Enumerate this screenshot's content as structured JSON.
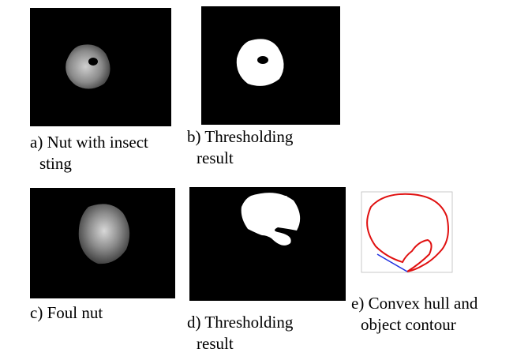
{
  "figure": {
    "panels": [
      {
        "caption": [
          "a) Nut with insect",
          "sting"
        ]
      },
      {
        "caption": [
          "b) Thresholding",
          "result"
        ]
      },
      {
        "caption": [
          "c) Foul nut"
        ]
      },
      {
        "caption": [
          "d) Thresholding",
          "result"
        ]
      },
      {
        "caption": [
          "e) Convex hull and",
          "object contour"
        ]
      }
    ]
  }
}
